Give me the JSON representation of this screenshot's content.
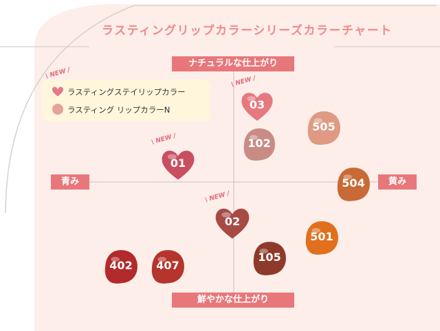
{
  "title": "ラスティングリップカラーシリーズカラーチャート",
  "axes": {
    "top": "ナチュラルな仕上がり",
    "bottom": "鮮やかな仕上がり",
    "left": "青み",
    "right": "黄み"
  },
  "legend": {
    "new_tag": "NEW",
    "items": [
      {
        "label": "ラスティングステイリップカラー",
        "shape": "heart",
        "color": "#e57c82"
      },
      {
        "label": "ラスティング リップカラーN",
        "shape": "blob",
        "color": "#e6a39b"
      }
    ]
  },
  "colors": {
    "background": "#fdeeea",
    "accent": "#e8777b",
    "axis_line": "#c9c0bd"
  },
  "swatches": [
    {
      "code": "03",
      "shape": "heart",
      "is_new": true,
      "color": "#e5797f"
    },
    {
      "code": "505",
      "shape": "blob",
      "is_new": false,
      "color": "#de9a82"
    },
    {
      "code": "102",
      "shape": "blob",
      "is_new": false,
      "color": "#c88c85"
    },
    {
      "code": "01",
      "shape": "heart",
      "is_new": true,
      "color": "#c94f60"
    },
    {
      "code": "504",
      "shape": "blob",
      "is_new": false,
      "color": "#c86a35"
    },
    {
      "code": "02",
      "shape": "heart",
      "is_new": true,
      "color": "#a84a44"
    },
    {
      "code": "501",
      "shape": "blob",
      "is_new": false,
      "color": "#e0701e"
    },
    {
      "code": "105",
      "shape": "blob",
      "is_new": false,
      "color": "#8e3a2a"
    },
    {
      "code": "402",
      "shape": "blob",
      "is_new": false,
      "color": "#b32a2c"
    },
    {
      "code": "407",
      "shape": "blob",
      "is_new": false,
      "color": "#b5342b"
    }
  ]
}
